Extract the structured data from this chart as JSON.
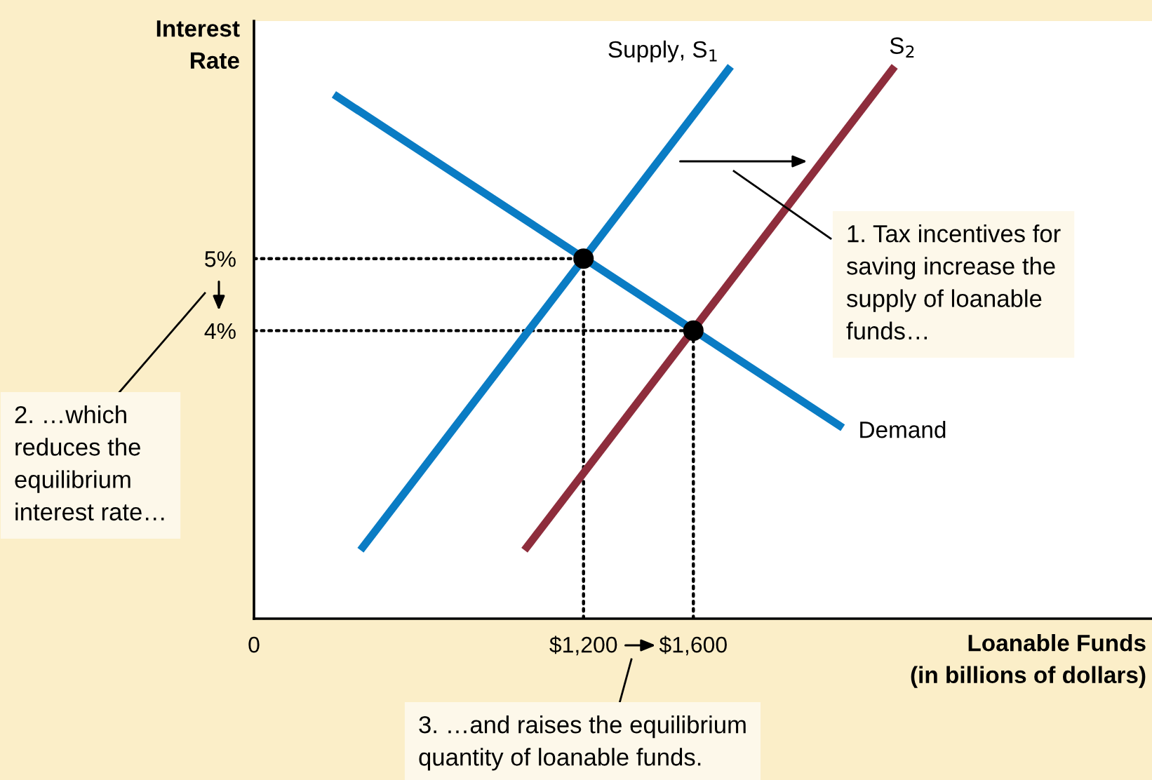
{
  "chart_data": {
    "type": "line",
    "xlabel": "Loanable Funds\n(in billions of dollars)",
    "ylabel": "Interest\nRate",
    "xlim": [
      0,
      3270
    ],
    "ylim": [
      0,
      8.3
    ],
    "xticks": [
      {
        "value": 0,
        "label": "0"
      },
      {
        "value": 1200,
        "label": "$1,200"
      },
      {
        "value": 1600,
        "label": "$1,600"
      }
    ],
    "yticks": [
      {
        "value": 4,
        "label": "4%"
      },
      {
        "value": 5,
        "label": "5%"
      }
    ],
    "grid": false,
    "legend": false,
    "series": [
      {
        "name": "Supply, S$_{1}$",
        "color": "#0a7cc4",
        "x": [
          388,
          1736
        ],
        "values": [
          0.95,
          7.67
        ]
      },
      {
        "name": "S$_{2}$",
        "color": "#8e2d3c",
        "x": [
          985,
          2333
        ],
        "values": [
          0.95,
          7.67
        ]
      },
      {
        "name": "Demand",
        "color": "#0a7cc4",
        "x": [
          291,
          2144
        ],
        "values": [
          7.28,
          2.65
        ]
      },
      {
        "type": "line",
        "line_style": "dotted",
        "color": "#000000",
        "x": [
          0,
          1200
        ],
        "values": [
          5,
          5
        ]
      },
      {
        "type": "line",
        "line_style": "dotted",
        "color": "#000000",
        "x": [
          1200,
          1200
        ],
        "values": [
          0,
          5
        ]
      },
      {
        "type": "line",
        "line_style": "dotted",
        "color": "#000000",
        "x": [
          0,
          1600
        ],
        "values": [
          4,
          4
        ]
      },
      {
        "type": "line",
        "line_style": "dotted",
        "color": "#000000",
        "x": [
          1600,
          1600
        ],
        "values": [
          0,
          4
        ]
      },
      {
        "type": "scatter",
        "marker": "circle",
        "color": "#000000",
        "x": [
          1200,
          1600
        ],
        "values": [
          5,
          4
        ]
      }
    ],
    "annotations": [
      "1. Tax incentives for\nsaving increase the\nsupply of loanable\nfunds…",
      "2. …which\nreduces the\nequilibrium\ninterest rate…",
      "3. …and raises the equilibrium\nquantity of loanable funds."
    ]
  }
}
